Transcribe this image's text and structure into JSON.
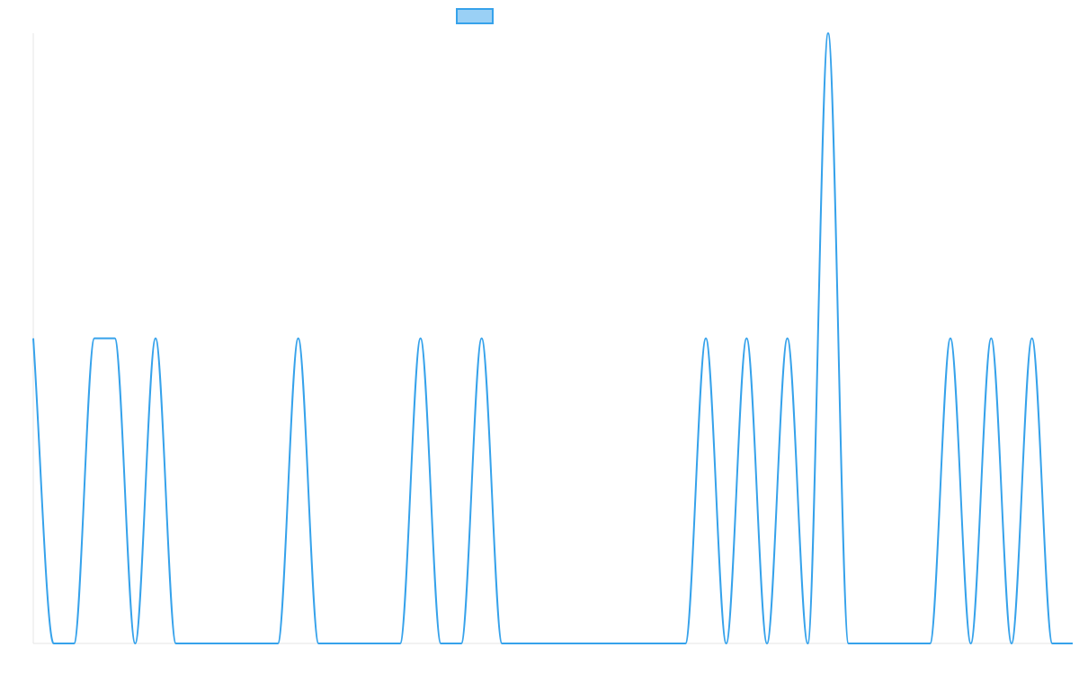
{
  "chart_data": {
    "type": "line",
    "title": "",
    "xlabel": "",
    "ylabel": "",
    "x_domain": [
      0,
      51
    ],
    "ylim": [
      0,
      2
    ],
    "grid": false,
    "legend": {
      "position": "top",
      "entries": [
        {
          "label": "",
          "color": "#36A2EB",
          "fill": "#9AD0F5"
        }
      ]
    },
    "series": [
      {
        "color": "#36A2EB",
        "curve": "monotone",
        "points": [
          {
            "x": 0,
            "y": 1
          },
          {
            "x": 1,
            "y": 0
          },
          {
            "x": 2,
            "y": 0
          },
          {
            "x": 3,
            "y": 1
          },
          {
            "x": 4,
            "y": 1
          },
          {
            "x": 5,
            "y": 0
          },
          {
            "x": 6,
            "y": 1
          },
          {
            "x": 7,
            "y": 0
          },
          {
            "x": 12,
            "y": 0
          },
          {
            "x": 13,
            "y": 1
          },
          {
            "x": 14,
            "y": 0
          },
          {
            "x": 18,
            "y": 0
          },
          {
            "x": 19,
            "y": 1
          },
          {
            "x": 20,
            "y": 0
          },
          {
            "x": 21,
            "y": 0
          },
          {
            "x": 22,
            "y": 1
          },
          {
            "x": 23,
            "y": 0
          },
          {
            "x": 32,
            "y": 0
          },
          {
            "x": 33,
            "y": 1
          },
          {
            "x": 34,
            "y": 0
          },
          {
            "x": 35,
            "y": 1
          },
          {
            "x": 36,
            "y": 0
          },
          {
            "x": 37,
            "y": 1
          },
          {
            "x": 38,
            "y": 0
          },
          {
            "x": 39,
            "y": 2
          },
          {
            "x": 40,
            "y": 0
          },
          {
            "x": 44,
            "y": 0
          },
          {
            "x": 45,
            "y": 1
          },
          {
            "x": 46,
            "y": 0
          },
          {
            "x": 47,
            "y": 1
          },
          {
            "x": 48,
            "y": 0
          },
          {
            "x": 49,
            "y": 1
          },
          {
            "x": 50,
            "y": 0
          },
          {
            "x": 51,
            "y": 0
          }
        ]
      }
    ]
  }
}
